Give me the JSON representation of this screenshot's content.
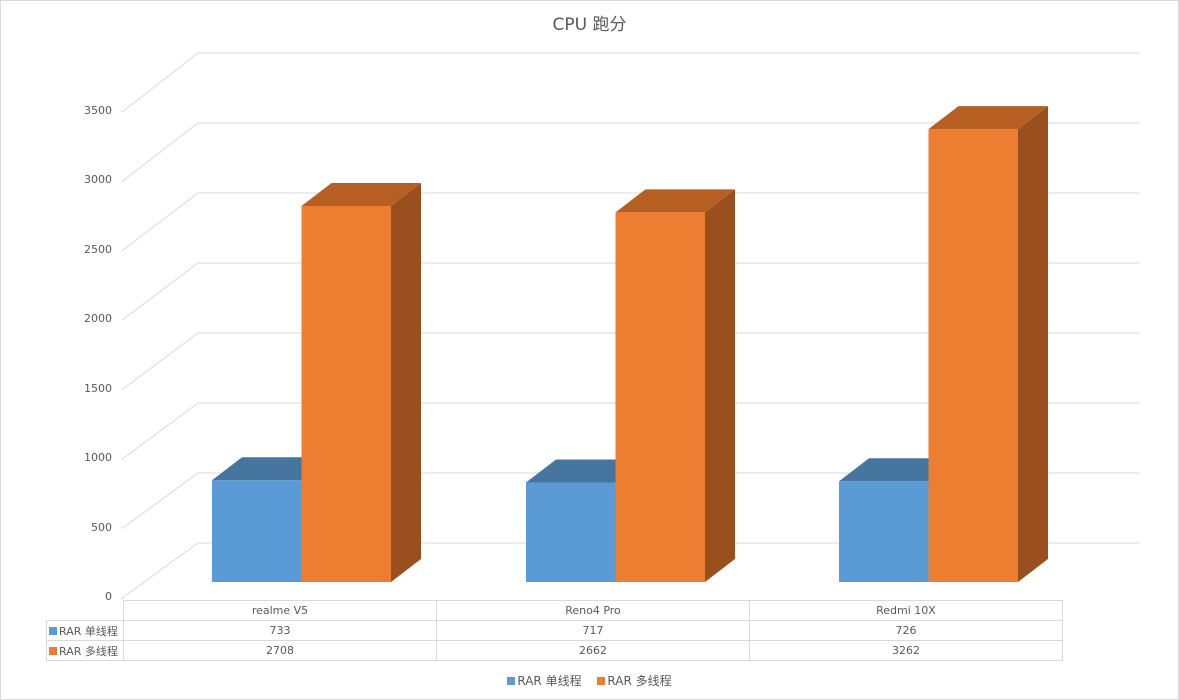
{
  "chart_data": {
    "type": "bar",
    "subtype": "3d-clustered-column",
    "title": "CPU 跑分",
    "categories": [
      "realme V5",
      "Reno4 Pro",
      "Redmi 10X"
    ],
    "series": [
      {
        "name": "RAR 单线程",
        "values": [
          733,
          717,
          726
        ],
        "color": "#5b9bd5"
      },
      {
        "name": "RAR 多线程",
        "values": [
          2708,
          2662,
          3262
        ],
        "color": "#ed7d31"
      }
    ],
    "xlabel": "",
    "ylabel": "",
    "ylim": [
      0,
      3500
    ],
    "yticks": [
      "0",
      "500",
      "1000",
      "1500",
      "2000",
      "2500",
      "3000",
      "3500"
    ],
    "grid": true,
    "legend_position": "bottom",
    "data_table": true
  },
  "table": {
    "headers": [
      "realme V5",
      "Reno4 Pro",
      "Redmi 10X"
    ],
    "rows": [
      {
        "label": "RAR 单线程",
        "values": [
          "733",
          "717",
          "726"
        ]
      },
      {
        "label": "RAR 多线程",
        "values": [
          "2708",
          "2662",
          "3262"
        ]
      }
    ]
  },
  "legend": [
    {
      "label": "RAR 单线程",
      "color": "#5b9bd5"
    },
    {
      "label": "RAR 多线程",
      "color": "#ed7d31"
    }
  ]
}
